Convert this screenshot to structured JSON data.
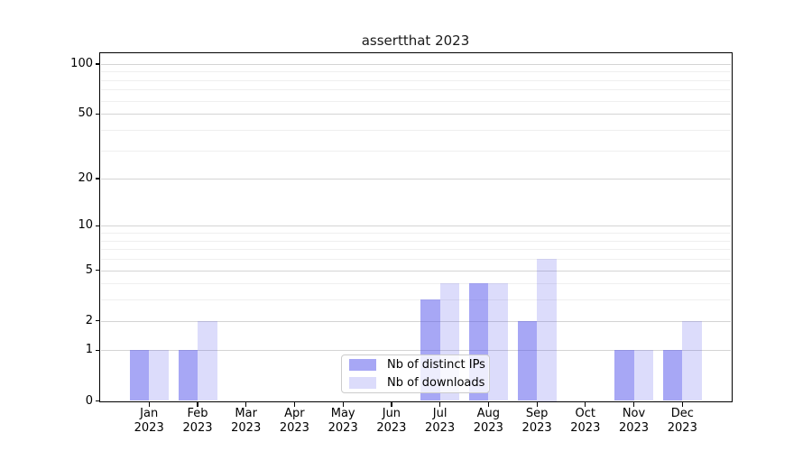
{
  "chart_data": {
    "type": "bar",
    "title": "assertthat 2023",
    "categories": [
      "Jan",
      "Feb",
      "Mar",
      "Apr",
      "May",
      "Jun",
      "Jul",
      "Aug",
      "Sep",
      "Oct",
      "Nov",
      "Dec"
    ],
    "category_year": "2023",
    "series": [
      {
        "name": "Nb of distinct IPs",
        "values": [
          1,
          1,
          0,
          0,
          0,
          0,
          3,
          4,
          2,
          0,
          1,
          1
        ],
        "color": "rgba(80,80,235,0.5)"
      },
      {
        "name": "Nb of downloads",
        "values": [
          1,
          2,
          0,
          0,
          0,
          0,
          4,
          4,
          6,
          0,
          1,
          2
        ],
        "color": "rgba(80,80,235,0.2)"
      }
    ],
    "yscale": "log1p",
    "ylim": [
      0,
      116
    ],
    "yticks": [
      0,
      1,
      2,
      5,
      10,
      20,
      50,
      100
    ],
    "yticks_minor": [
      3,
      4,
      6,
      7,
      8,
      9,
      30,
      40,
      60,
      70,
      80,
      90
    ],
    "grid": {
      "major_color": "#d4d4d4",
      "minor_color": "#efefef",
      "orientation": "horizontal"
    },
    "legend": {
      "position": "lower center"
    },
    "axis_color": "#000000"
  }
}
